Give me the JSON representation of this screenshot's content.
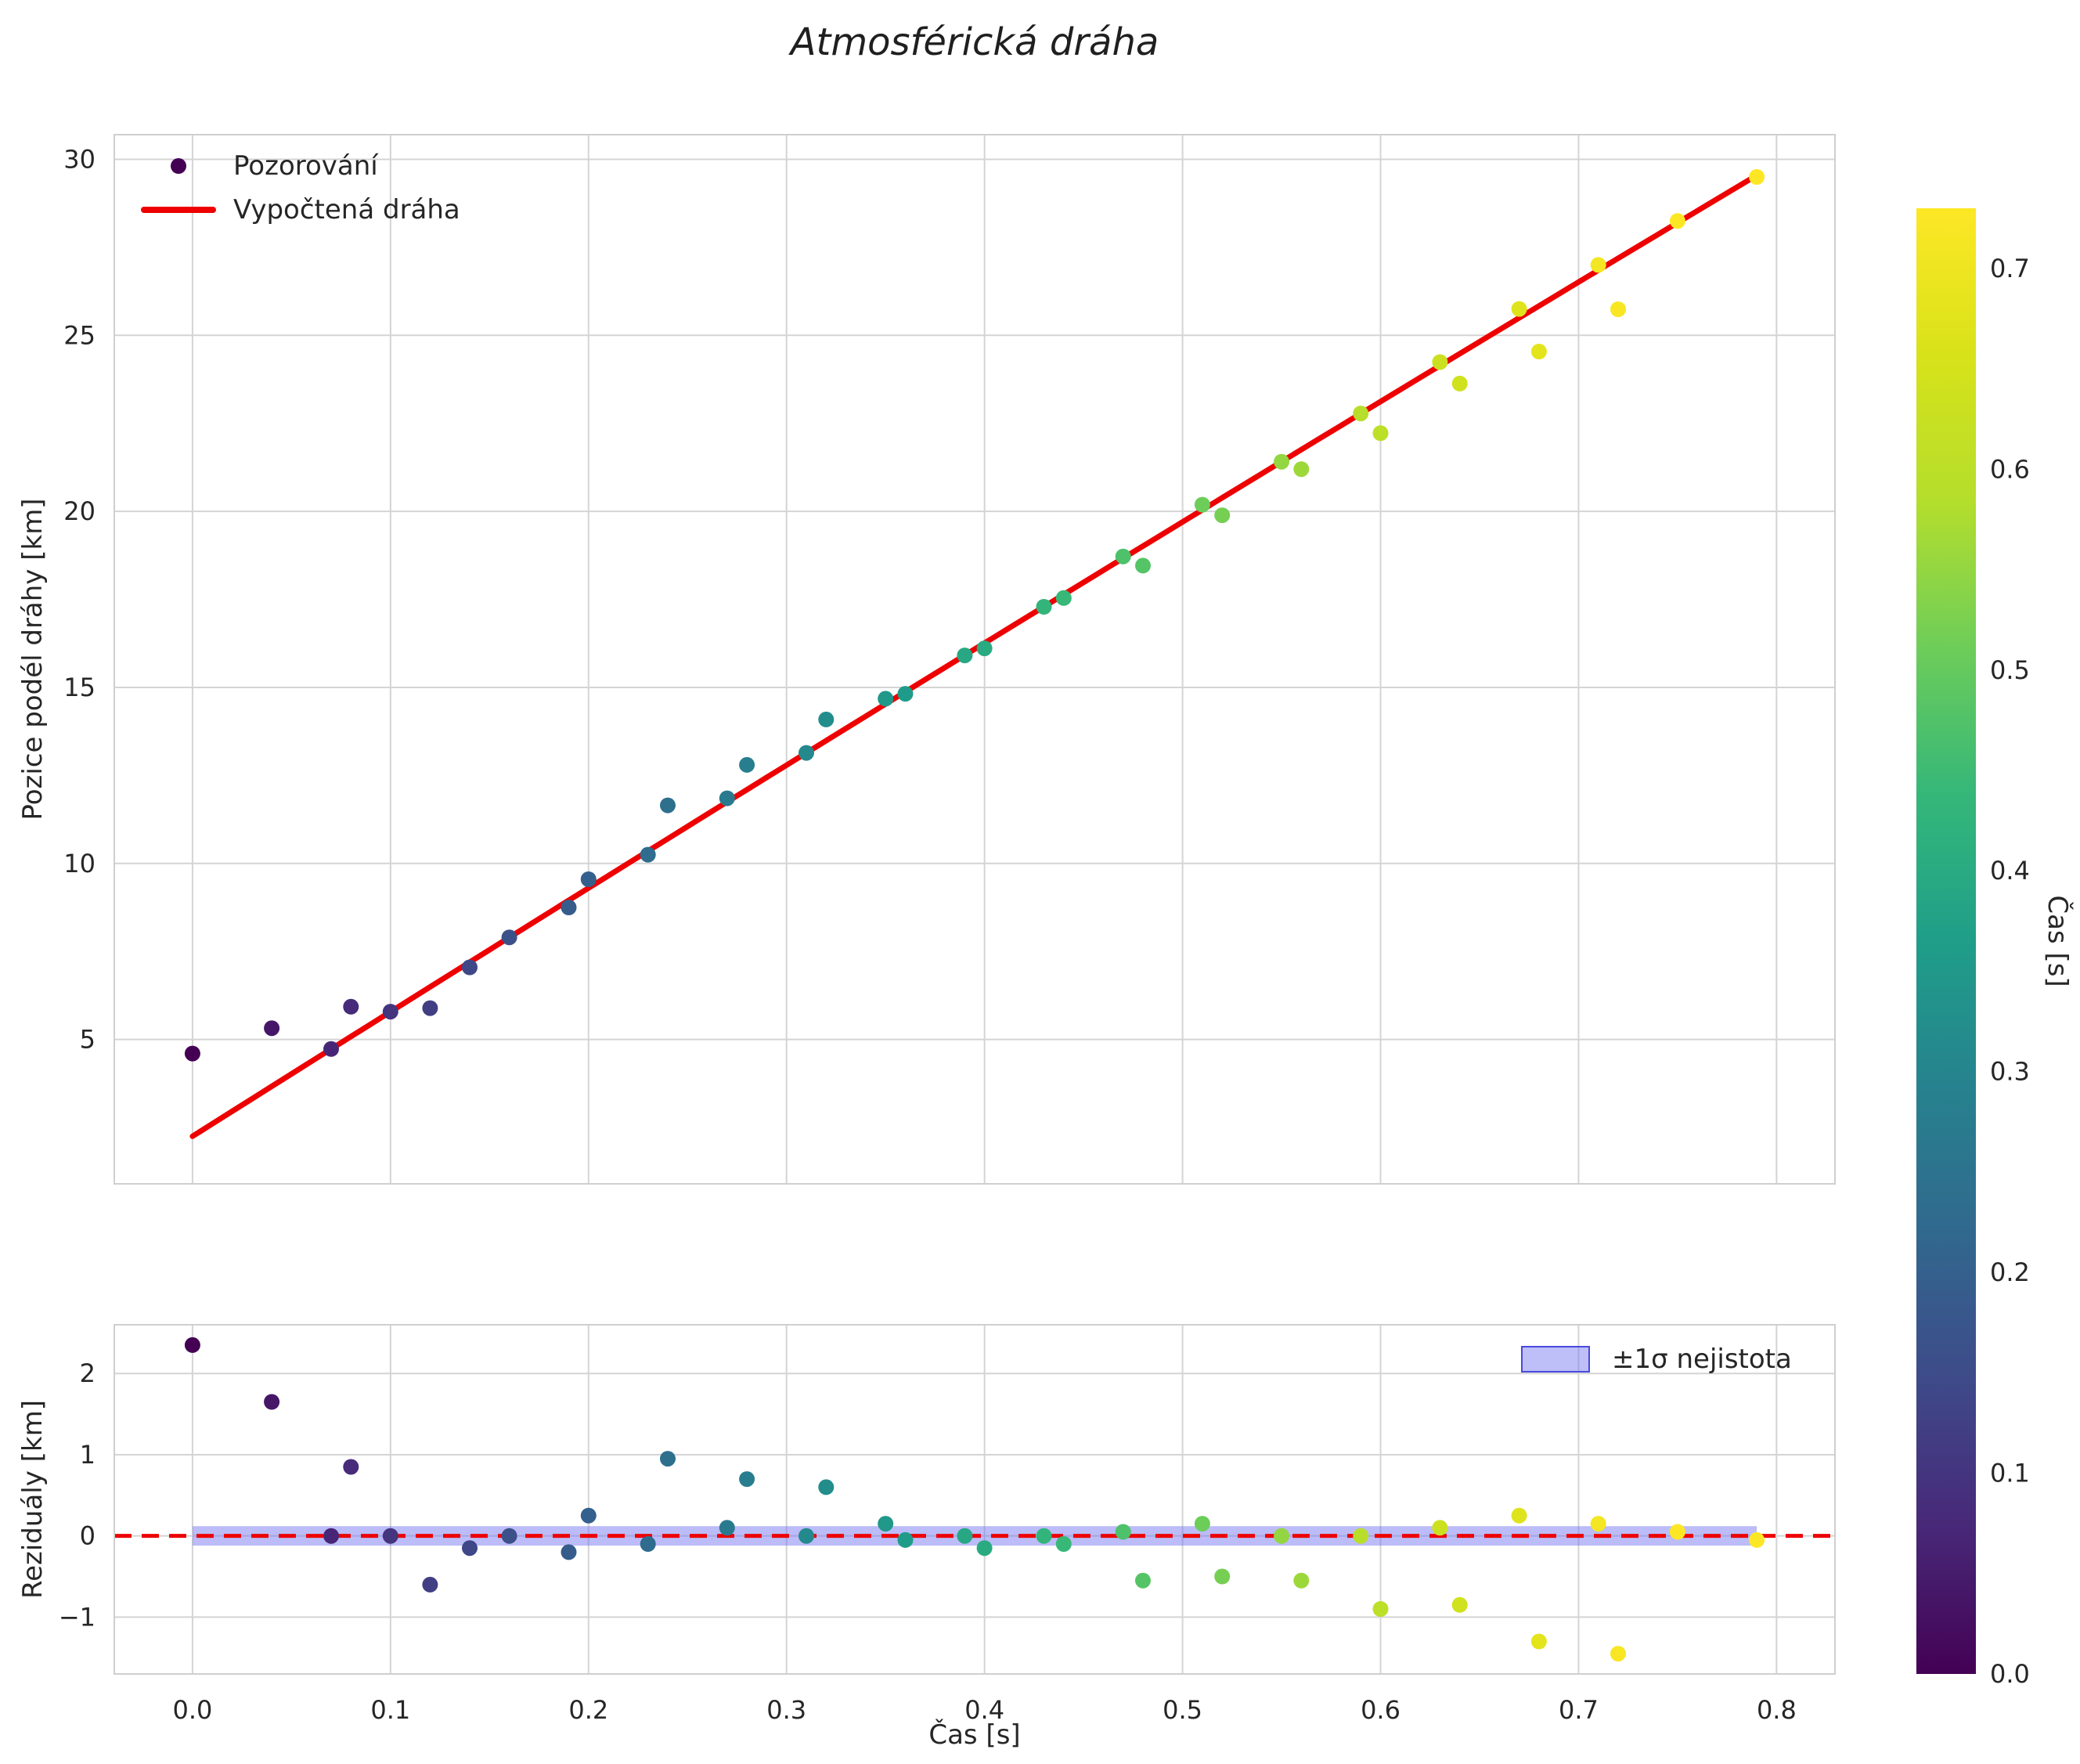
{
  "title": "Atmosférická dráha",
  "colors": {
    "fit_line": "#ee0000",
    "band_fill": "#6b6bf0",
    "band_edge": "#4949dd",
    "grid": "#d4d4d4",
    "axes_edge": "#cfcfcf",
    "text": "#262626"
  },
  "axes": {
    "top": {
      "ylabel": "Pozice podél dráhy [km]",
      "yticks": [
        5,
        10,
        15,
        20,
        25,
        30
      ],
      "ytick_labels": [
        "5",
        "10",
        "15",
        "20",
        "25",
        "30"
      ],
      "legend": [
        {
          "label": "Pozorování",
          "marker": "dot"
        },
        {
          "label": "Vypočtená dráha",
          "marker": "line"
        }
      ]
    },
    "bottom": {
      "ylabel": "Reziduály [km]",
      "xlabel": "Čas [s]",
      "yticks": [
        -1,
        0,
        1,
        2
      ],
      "ytick_labels": [
        "−1",
        "0",
        "1",
        "2"
      ],
      "xticks": [
        0.0,
        0.1,
        0.2,
        0.3,
        0.4,
        0.5,
        0.6,
        0.7,
        0.8
      ],
      "xtick_labels": [
        "0.0",
        "0.1",
        "0.2",
        "0.3",
        "0.4",
        "0.5",
        "0.6",
        "0.7",
        "0.8"
      ],
      "legend": [
        {
          "label": "±1σ nejistota",
          "marker": "patch"
        }
      ]
    },
    "colorbar": {
      "label": "Čas [s]",
      "ticks": [
        0.0,
        0.1,
        0.2,
        0.3,
        0.4,
        0.5,
        0.6,
        0.7
      ],
      "tick_labels": [
        "0.0",
        "0.1",
        "0.2",
        "0.3",
        "0.4",
        "0.5",
        "0.6",
        "0.7"
      ],
      "vmin": 0.0,
      "vmax": 0.73,
      "colormap": "viridis"
    }
  },
  "chart_data": [
    {
      "type": "scatter",
      "title": "Atmosférická dráha",
      "xlabel": "Čas [s]",
      "ylabel": "Pozice podél dráhy [km]",
      "xlim": [
        -0.04,
        0.83
      ],
      "ylim": [
        0.9,
        30.7
      ],
      "grid": true,
      "legend_position": "upper left",
      "series": [
        {
          "name": "Pozorování",
          "type": "scatter",
          "color_by": "x",
          "colormap": "viridis",
          "x": [
            0.0,
            0.04,
            0.07,
            0.08,
            0.1,
            0.12,
            0.14,
            0.16,
            0.19,
            0.2,
            0.23,
            0.24,
            0.27,
            0.28,
            0.31,
            0.32,
            0.35,
            0.36,
            0.39,
            0.4,
            0.43,
            0.44,
            0.47,
            0.48,
            0.51,
            0.52,
            0.55,
            0.56,
            0.59,
            0.6,
            0.63,
            0.64,
            0.67,
            0.68,
            0.71,
            0.72,
            0.75,
            0.79
          ],
          "y": [
            4.6,
            5.32,
            4.73,
            5.93,
            5.79,
            5.89,
            7.05,
            7.9,
            8.75,
            9.55,
            10.25,
            11.65,
            11.85,
            12.8,
            13.14,
            14.09,
            14.68,
            14.82,
            15.91,
            16.11,
            17.29,
            17.54,
            18.72,
            18.46,
            20.19,
            19.89,
            21.41,
            21.2,
            22.78,
            22.22,
            24.24,
            23.63,
            25.75,
            24.54,
            27.0,
            25.74,
            28.25,
            29.5
          ]
        },
        {
          "name": "Vypočtená dráha",
          "type": "line",
          "fit": "quadratic",
          "coefficients": [
            2.25,
            35.5,
            -1.2
          ],
          "x_range": [
            0.0,
            0.79
          ]
        }
      ]
    },
    {
      "type": "scatter",
      "xlabel": "Čas [s]",
      "ylabel": "Reziduály [km]",
      "xlim": [
        -0.04,
        0.83
      ],
      "ylim": [
        -1.7,
        2.6
      ],
      "grid": true,
      "zero_line": true,
      "legend_position": "upper right",
      "band": {
        "label": "±1σ nejistota",
        "half_width": 0.12,
        "x_range": [
          0.0,
          0.79
        ]
      },
      "series": [
        {
          "name": "Reziduály",
          "type": "scatter",
          "color_by": "x",
          "colormap": "viridis",
          "x": [
            0.0,
            0.04,
            0.07,
            0.08,
            0.1,
            0.12,
            0.14,
            0.16,
            0.19,
            0.2,
            0.23,
            0.24,
            0.27,
            0.28,
            0.31,
            0.32,
            0.35,
            0.36,
            0.39,
            0.4,
            0.43,
            0.44,
            0.47,
            0.48,
            0.51,
            0.52,
            0.55,
            0.56,
            0.59,
            0.6,
            0.63,
            0.64,
            0.67,
            0.68,
            0.71,
            0.72,
            0.75,
            0.79
          ],
          "y": [
            2.35,
            1.65,
            0.0,
            0.85,
            0.0,
            -0.6,
            -0.15,
            0.0,
            -0.2,
            0.25,
            -0.1,
            0.95,
            0.1,
            0.7,
            0.0,
            0.6,
            0.15,
            -0.05,
            0.0,
            -0.15,
            0.0,
            -0.1,
            0.05,
            -0.55,
            0.15,
            -0.5,
            0.0,
            -0.55,
            0.0,
            -0.9,
            0.1,
            -0.85,
            0.25,
            -1.3,
            0.15,
            -1.45,
            0.05,
            -0.05
          ]
        }
      ]
    }
  ]
}
